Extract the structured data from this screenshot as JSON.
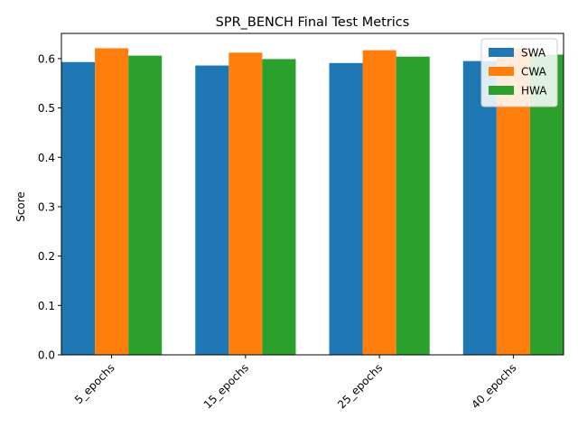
{
  "chart_data": {
    "type": "bar",
    "title": "SPR_BENCH Final Test Metrics",
    "xlabel": "",
    "ylabel": "Score",
    "categories": [
      "5_epochs",
      "15_epochs",
      "25_epochs",
      "40_epochs"
    ],
    "series": [
      {
        "name": "SWA",
        "color": "#1f77b4",
        "values": [
          0.593,
          0.586,
          0.591,
          0.595
        ]
      },
      {
        "name": "CWA",
        "color": "#ff7f0e",
        "values": [
          0.621,
          0.612,
          0.617,
          0.621
        ]
      },
      {
        "name": "HWA",
        "color": "#2ca02c",
        "values": [
          0.606,
          0.599,
          0.604,
          0.608
        ]
      }
    ],
    "ylim": [
      0,
      0.651
    ],
    "yticks": [
      "0.0",
      "0.1",
      "0.2",
      "0.3",
      "0.4",
      "0.5",
      "0.6"
    ],
    "legend_position": "top-right",
    "grid": false
  }
}
